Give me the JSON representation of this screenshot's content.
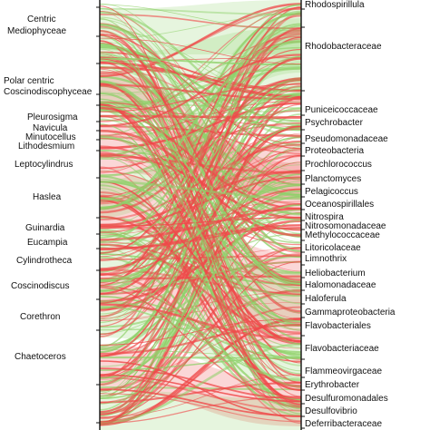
{
  "left_labels": [
    {
      "text": "Centric",
      "row": 0
    },
    {
      "text": "Mediophyceae",
      "row": 0
    },
    {
      "text": "Polar centric",
      "row": 1
    },
    {
      "text": "Coscinodiscophyceae",
      "row": 1
    },
    {
      "text": "Pleurosigma",
      "row": 2
    },
    {
      "text": "Navicula",
      "row": 3
    },
    {
      "text": "Minutocellus",
      "row": 4
    },
    {
      "text": "Lithodesmium",
      "row": 5
    },
    {
      "text": "Leptocylindrus",
      "row": 6
    },
    {
      "text": "Haslea",
      "row": 7
    },
    {
      "text": "Guinardia",
      "row": 8
    },
    {
      "text": "Eucampia",
      "row": 9
    },
    {
      "text": "Cylindrotheca",
      "row": 10
    },
    {
      "text": "Coscinodiscus",
      "row": 11
    },
    {
      "text": "Corethron",
      "row": 12
    },
    {
      "text": "Chaetoceros",
      "row": 13
    }
  ],
  "right_labels": [
    "Rhodospirillula",
    "Rhodobacteraceae",
    "Puniceicoccaceae",
    "Psychrobacter",
    "Pseudomonadaceae",
    "Proteobacteria",
    "Prochlorococcus",
    "Planctomyces",
    "Pelagicoccus",
    "Oceanospirillales",
    "Nitrospira",
    "Nitrosomonadaceae",
    "Methylococcaceae",
    "Litoricolaceae",
    "Limnothrix",
    "Heliobacterium",
    "Halomonadaceae",
    "Haloferula",
    "Gammaproteobacteria",
    "Flavobacteriales",
    "Flavobacteriaceae",
    "Flammeovirgaceae",
    "Erythrobacter",
    "Desulfuromonadales",
    "Desulfovibrio",
    "Deferribacteraceae"
  ],
  "colors": {
    "positive": "#8fd16a",
    "negative": "#ef4a4a",
    "axis": "#111111"
  }
}
